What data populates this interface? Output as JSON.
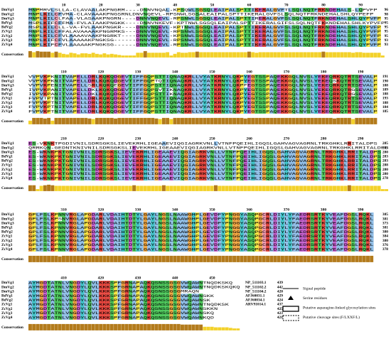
{
  "blocks": [
    {
      "ruler": [
        10,
        20,
        30,
        40,
        50,
        60,
        70,
        80,
        90
      ],
      "rows": [
        {
          "name": "DmVg1",
          "seq": "MNPMRVLSLLA-CLAVAALAKPNGRM----DNNVNQAL-KPSQWLSGSQLEAIPALSPTTIKERALGVFTLSQLNQTFRKNDEHALS-LQPVFP",
          "end": "96"
        },
        {
          "name": "DmVg2",
          "seq": "MNPLKILCFVMA-CLAVAAAKPNGSRNLDNVNQEVL-RPSNWLSGSALEAIPALSPTTIKERALGVFSLSQLNQTFRKNDEHALSHLQYPEFP",
          "end": "98"
        },
        {
          "name": "DmVg3",
          "seq": "MNPLKILCLFAA-VLASAAKPNGRN----DNNVNQEVL-RPSNWLSGSQLEAIPALSPTTIRERALGVFSLSQLNQTFRKNDEHALSHLQYPVFP",
          "end": "95"
        },
        {
          "name": "BdVg1",
          "seq": "MSPLKIFCFFMA-FVLAIAAKPNGKK----DNNVNKEVF-KPTNWLSGSQLEAIPALSPTTIKERALGIFSLSQLNQTFKKNDEHALSHLKYPVFP",
          "end": "95"
        },
        {
          "name": "BdVg2",
          "seq": "MSPLKILCLL-VA-FVLAAKPNGKR----DNNVNQEVL-KPTNWLSGSQLEAIPALSPTTIKERALGVFSLSQLNQTFRKNDEHALSHLQYPVFP",
          "end": "95"
        },
        {
          "name": "ZcVg1",
          "seq": "MNPLKILCFFALAVAAAAKPNGRMKS---DNNVNQEVL-RPSNWLSGSQLEAIPALSPTTIKERALGVFSLSQLNQTFRKNDEHALSHLQYPVFP",
          "end": "95"
        },
        {
          "name": "ZcVg2",
          "seq": "MNPLKILCFVLAAAAVAAKPNGRKT----DNNVNQEVL-KPSNWLSGSQLEAIPALSPTTIKERALGVFSLSQLNQTFRKNDEHALSHLQYPVFP",
          "end": "95"
        },
        {
          "name": "ZcVg3",
          "seq": "MNPLKIFCFVLAAAAAKPNGKSG------DNNVNQEVL-RPSNWLSGSQLEAIPALSPTTIKERALGVFSLSQLNQTFRKNDEHALSHLQYPVFP",
          "end": "93"
        },
        {
          "name": "ZcVg4",
          "seq": "MNPLKIFCFVLAAAAAKPNGKSG------DNNVNQEVL-RPSNWLSGSQLEAIPALSPTTIKERALGVFSLSQLNQTFRKNDEHALSHLQYPVFP",
          "end": "93"
        }
      ]
    },
    {
      "ruler": [
        110,
        120,
        130,
        140,
        150,
        160,
        170,
        180,
        190
      ],
      "rows": [
        {
          "name": "DmVg1",
          "seq": "VVPVKPKNITVAPELLDRLKQKQDGEVTIFFGQPSTTIQNAQKRLLVYATKRNYLQKPYEGTSSPAQEKKGQLNVSLYEKEQRKQTRTSEVALP",
          "end": "191"
        },
        {
          "name": "DmVg2",
          "seq": "VVPVKPKNITVAPELLDRLKQKQDGEVTIFFGQPTQTIQNAQKRLLVYATKRNYLQKPYEGTSSPAQEKKGQLNVSLYEKEQSKQTRTSEVALP",
          "end": "190"
        },
        {
          "name": "DmVg3",
          "seq": "VVPVKPENITVAPELLSRLKQKQEGEVTIFFGQPSTTIQNAQKRLLVYATKRNYLQKPFEGTSSPAQEKKGQLNVSLYEKEQRKQTRTSEVALP",
          "end": "188"
        },
        {
          "name": "BdVg1",
          "seq": "IVPVKPANITVAPELLDKLKQKQDGEVTIFFGQPSVTIKNAQKRLLVYATKRNYLQKPYEGTSSPAQEKKGQLNVSLYEKEQRKQTRGSEVALP",
          "end": "189"
        },
        {
          "name": "BdVg2",
          "seq": "IVPVKPANITVAPELLDKLKQKQDGEVTIFFGQPSTTIKNAQKRLLVYATKRNYLQKPYEGTSSPAQEKKGQLNVSLYEKEQRKQTRGSEVALP",
          "end": "188"
        },
        {
          "name": "ZcVg1",
          "seq": "FVPVTPTNITVAPELLDRLKQKQDGEVTIFFGQPSTTIQNAQKRLLVYATKRNYLQKPYEGTSSPAQEKKGQLNVSLYEKEQRKQTRTSEVALP",
          "end": "193"
        },
        {
          "name": "ZcVg2",
          "seq": "FVPVKPTNITVAPELLDRLKQKQDGEVTIFFGQPSTTIQNAQKRLLVYATKRNYLQKPYEGTSSPAQEKKGQLNVSLYEKEQRKQTRTSEVALP",
          "end": "188"
        },
        {
          "name": "ZcVg3",
          "seq": "FVPVKPTNITVAPELLDRLKQKQDGEVTIFFGQPSTTIQNAQKRLLVYATKRNYLQKPYEGTSSPAQEKKGQLNVSLYEKEQRKQTRTSEVALP",
          "end": "184"
        },
        {
          "name": "ZcVg4",
          "seq": "FVPVKPTNITVAPELLDRLKQKQDGEVTIFFGQPSTTIQNAQKRLLVYATKRNYLQKPYEGTSSPAQEKKGQLNVSLYEKEQRKQTRTSEVALP",
          "end": "185"
        }
      ]
    },
    {
      "ruler": [
        210,
        220,
        230,
        240,
        250,
        260,
        270,
        280,
        290
      ],
      "rows": [
        {
          "name": "DmVg1",
          "seq": "ES-VKNKTPGDIVNILSDRSGKSLIEVEKRHLIGEAAEVIQGIAGRKVNLLVTNFPQEIHLIGQSLGAHVAGVAGRNLTRKGHKLRRITALDPS",
          "end": "285"
        },
        {
          "name": "DmVg2",
          "seq": "QRRKQN-GEDNTKNIVNILSDRSGKSLIEVEKRHLIGEAAEVIQGIAGRKVNLLVTNFPQEIHLIGQSLGAHVAGVAGRNLTRKGHKLRRITALDPS",
          "end": "283"
        },
        {
          "name": "DmVg3",
          "seq": "ES-WKNKPKTGNIVNILSDRSGKSLIEVEKRHLIGEAAEVIQGIAGRKVNLLVTNFPQEIHLIGQSLGAHVAGVAGRNLTRKGHKLRRITALDPS",
          "end": "280"
        },
        {
          "name": "BdVg1",
          "seq": "ES-WKNKPKTGNIVNILSDRSGKSLIEVEKRHLIGEAAEVIQGIAGRKVNLLVTNFPQEIHLIGQSLGAHVAGVAGRNLTRKGHKLRRITALDPS",
          "end": "283"
        },
        {
          "name": "BdVg2",
          "seq": "ES-WKNKPKTGNIVNILSDRSGKSLIEVEKRHLIGEAAEVIQGIAGRKVNLLVTNFPQEIHLIGQSLGAHVAGVAGRNLTRKGHKLRRITALDPS",
          "end": "283"
        },
        {
          "name": "ZcVg1",
          "seq": "ES-WKNKPKTGNIVNILSDRSGKSLIEVEKRHLIGEAAEVIQGIAGRKVNLLVTNFPQEIHLIGQSLGAHVAGVAGRNLTRKGHKLRRITALDPS",
          "end": "288"
        },
        {
          "name": "ZcVg2",
          "seq": "ES-WKNKPKTGNIVNILSDRSGKSLIEVEKRHLIGEAAEVIQGIAGRKVNLLVTNFPQEIHLIGQSLGAHVAGVAGRNLTRKGHKLRRITALDPS",
          "end": "280"
        },
        {
          "name": "ZcVg3",
          "seq": "ES-WKNKPKTGNIVNILSDRSGKSLIEVEKRHLIGEAAEVIQGIAGRKVNLLVTNFPQEIHLIGQSLGAHVAGVAGRNLTRKGHKLRRITALDPS",
          "end": "280"
        },
        {
          "name": "ZcVg4",
          "seq": "ES-WKNKPKTGNIVNILSDRSGKSLIEVEKRHLIGEAAEVIQGIAGRKVNLLVTNFPQEIHLIGQSLGAHVAGVAGRNLTRKGHKLRRITALDPS",
          "end": "278"
        }
      ]
    },
    {
      "ruler": [
        310,
        320,
        330,
        340,
        350,
        360,
        370,
        380,
        390
      ],
      "rows": [
        {
          "name": "DmVg1",
          "seq": "GPLFSLKPNNVRGLAPGDARLVDAIHTDTYLGAYLNGSLNAAWGHPLGEVDFYPNGGYASQPGCRLDIYLYFAEDRSRTKYVEAFDGSLRQKL",
          "end": "385"
        },
        {
          "name": "DmVg2",
          "seq": "GPLFSLKPSNVRGLAPGDARLVDAIHTDTYLGAYLNGSLNAAWGHPLGEVDFYPNGGYASQPGCRLDIYLYFAEDRSRTKYVEAFDGSLRQKL",
          "end": "381"
        },
        {
          "name": "DmVg3",
          "seq": "GPLFSLKPNNVRGLAPGDARLVDAIHTDTYLGAYLNGSLNAAWGHPLGEVDFYPNGGYASQPGCRLDIYLYFAEDRSRTKYVEAFDGSLRQKL",
          "end": "373"
        },
        {
          "name": "BdVg1",
          "seq": "GPLFSLKPNNVRGLAPGDARLVDAIHTDTYLGAYLNGSLNAAWGHPLGEVDFYPNGGYASQPGCRLDIYLYFAEDRSRTKYVEAFDGSLRQKL",
          "end": "381"
        },
        {
          "name": "BdVg2",
          "seq": "GPLFSLKPNNVRGLAPGDARLVDAIHTDTYLGAYLNGSLNAAWGHPLGEVDFYPNGGYASQPGCRLDIYLYFAEDRSRTKYVEAFDGSLRQKL",
          "end": "380"
        },
        {
          "name": "ZcVg1",
          "seq": "GPLFSLKPNNVRGLAPGDARLVDAIHTDTYLGAYLNGSLNAAWGHPLGEVDFYPNGGYASQPGCRLDIYLYFAEDRSRTKYVEAFDGSLRQKL",
          "end": "384"
        },
        {
          "name": "ZcVg2",
          "seq": "GPLFSLKPNNVRGLAPGDARLVDAIHTDTYLGAYLNGSLNAAWGHPLGEVDFYPNGGYASQPGCRLDIYLYFAEDRSRTKYVEAFDGSLRQKL",
          "end": "380"
        },
        {
          "name": "ZcVg3",
          "seq": "GPLFSLKPNNVRGLAPGDARLVDAIHTDTYLGAYLNGSLNAAWGHPLGEVDFYPNGGYASQPGCRLDIYLYFAEDRSRTKYVEAFDGSLRQKL",
          "end": "376"
        },
        {
          "name": "ZcVg4",
          "seq": "GPLFSLKPNNVRGLAPGDARLVDAIHTDTYLGAYLNGSLNAAWGHPLGEVDFYPNGGYASQPGCRLDIYLYFAEDRSRTKYVEAFDGSLRQKL",
          "end": "378"
        }
      ]
    },
    {
      "ruler": [
        410,
        420,
        430,
        440,
        450
      ],
      "rows": [
        {
          "name": "DmVg1",
          "seq": "AYMGDTATNLVNGDYLQVLKKKSPFGRNAPAQKQSNSSGSGVWQAWNTNQDKSKQ",
          "acc": "NP_511103.1",
          "end": "439"
        },
        {
          "name": "DmVg2",
          "seq": "AYMGDTATNLVNGDYLQVLKKKSPFGRNAPAQKQSNSSGSGVWQAWNTNQDKSKQKQ",
          "acc": "NP_511102.2",
          "end": "442"
        },
        {
          "name": "DmVg3",
          "seq": "AYMGDTATNLVNGDYLQVLKKKSPFGRNAPAQKQSNSSGSGMRAQN",
          "acc": "NP_511104.2",
          "end": "420"
        },
        {
          "name": "BdVg1",
          "seq": "AYMGDTATNLVNGDYLQVLKKKSPFGRNAPAQKQSNSSGSGVWQAWNSKK",
          "acc": "AFJ60031.1",
          "end": "429"
        },
        {
          "name": "BdVg2",
          "seq": "AYMGDTATNLVNGDYLQVLKKKSPFGRNAPAQKQSNSSGSGVWQAWNSK",
          "acc": "AFJ60034.1",
          "end": "424"
        },
        {
          "name": "ZcVg1",
          "seq": "AYMGDTATNLVNGDYLQVLKKKSPFGRNAPAQKQSNSSGSGVWQAWNTNQDKSK",
          "acc": "ARV91014.1",
          "end": "437"
        },
        {
          "name": "ZcVg2",
          "seq": "AYMGDTATNLVNGDYLQVLKKKSPFGRNAPAQKQSNSSGSGVWQAWNSKKN",
          "end": "425"
        },
        {
          "name": "ZcVg3",
          "seq": "AYMGDTATNLVNGDYLQVLKKKSPFGRNAPAQKQSNSSGSGVWQAWNSKQ",
          "end": "423"
        },
        {
          "name": "ZcVg4",
          "seq": "AYMGDTATNLVNGDYLQVLKKKSPFGRNAPAQKQSNSSGSGVWQAWNKQD",
          "end": "421"
        }
      ]
    }
  ],
  "conservation_label": "Conservation",
  "legend": [
    "Signal peptide",
    "Serine residues",
    "Putative asparagine-linked glycosylation sites",
    "Putative cleavage sites (F/LXXF/L)"
  ]
}
